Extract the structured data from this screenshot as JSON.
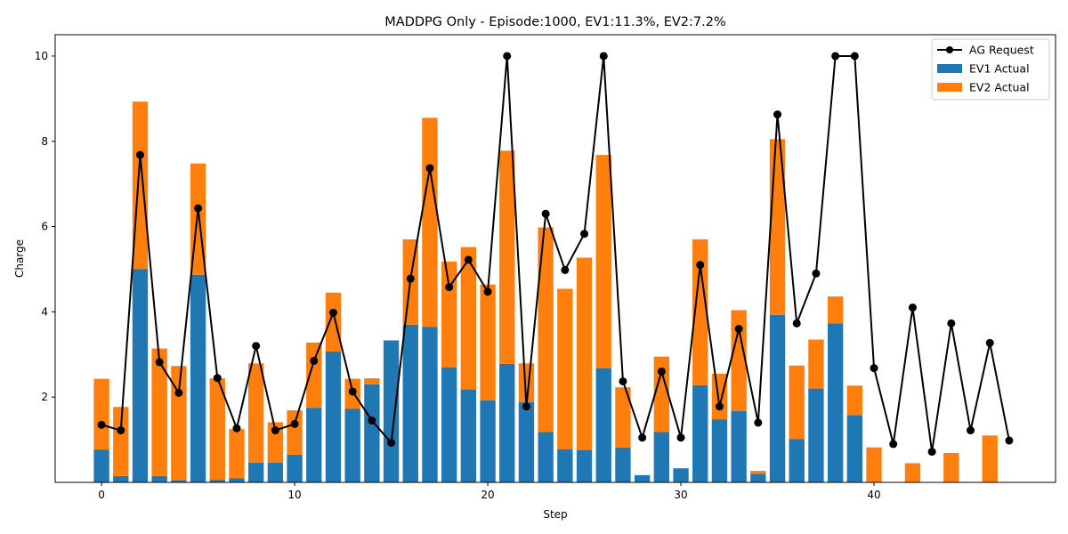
{
  "chart_data": {
    "type": "bar",
    "title": "MADDPG Only - Episode:1000, EV1:11.3%, EV2:7.2%",
    "xlabel": "Step",
    "ylabel": "Charge",
    "xlim": [
      -2.4,
      49.4
    ],
    "ylim": [
      0,
      10.5
    ],
    "xticks": [
      0,
      10,
      20,
      30,
      40
    ],
    "yticks": [
      2,
      4,
      6,
      8,
      10
    ],
    "grid": false,
    "legend_position": "top-right",
    "stacked": true,
    "x": [
      0,
      1,
      2,
      3,
      4,
      5,
      6,
      7,
      8,
      9,
      10,
      11,
      12,
      13,
      14,
      15,
      16,
      17,
      18,
      19,
      20,
      21,
      22,
      23,
      24,
      25,
      26,
      27,
      28,
      29,
      30,
      31,
      32,
      33,
      34,
      35,
      36,
      37,
      38,
      39,
      40,
      41,
      42,
      43,
      44,
      45,
      46,
      47
    ],
    "series": [
      {
        "name": "AG Request",
        "kind": "line",
        "color": "#000000",
        "values": [
          1.35,
          1.22,
          7.68,
          2.82,
          2.1,
          6.43,
          2.45,
          1.27,
          3.2,
          1.22,
          1.37,
          2.85,
          3.98,
          2.13,
          1.45,
          0.93,
          4.78,
          7.37,
          4.58,
          5.22,
          4.47,
          10.0,
          1.78,
          6.3,
          4.98,
          5.83,
          10.0,
          2.37,
          1.05,
          2.6,
          1.05,
          5.1,
          1.78,
          3.6,
          1.4,
          8.63,
          3.73,
          4.9,
          10.0,
          10.0,
          2.68,
          0.9,
          4.1,
          0.72,
          3.73,
          1.22,
          3.27,
          0.98
        ]
      },
      {
        "name": "EV1 Actual",
        "kind": "bar",
        "color": "#1f77b4",
        "values": [
          0.77,
          0.15,
          5.0,
          0.15,
          0.05,
          4.87,
          0.06,
          0.1,
          0.46,
          0.46,
          0.65,
          1.75,
          3.07,
          1.73,
          2.3,
          3.33,
          3.7,
          3.65,
          2.7,
          2.18,
          1.92,
          2.78,
          1.88,
          1.18,
          0.78,
          0.76,
          2.68,
          0.82,
          0.17,
          1.18,
          0.33,
          2.28,
          1.48,
          1.67,
          0.2,
          3.93,
          1.02,
          2.2,
          3.73,
          1.58,
          0,
          0,
          0,
          0,
          0,
          0,
          0,
          0
        ]
      },
      {
        "name": "EV2 Actual",
        "kind": "bar",
        "color": "#ff7f0e",
        "values": [
          1.66,
          1.62,
          3.93,
          2.99,
          2.68,
          2.61,
          2.38,
          1.15,
          2.33,
          0.95,
          1.04,
          1.53,
          1.38,
          0.7,
          0.14,
          0,
          2.0,
          4.9,
          2.48,
          3.34,
          2.72,
          5.0,
          0.91,
          4.8,
          3.76,
          4.51,
          5.0,
          1.41,
          0,
          1.77,
          0,
          3.42,
          1.07,
          2.37,
          0.07,
          4.12,
          1.72,
          1.15,
          0.63,
          0.69,
          0.82,
          0,
          0.45,
          0,
          0.69,
          0,
          1.1,
          0
        ]
      }
    ]
  }
}
